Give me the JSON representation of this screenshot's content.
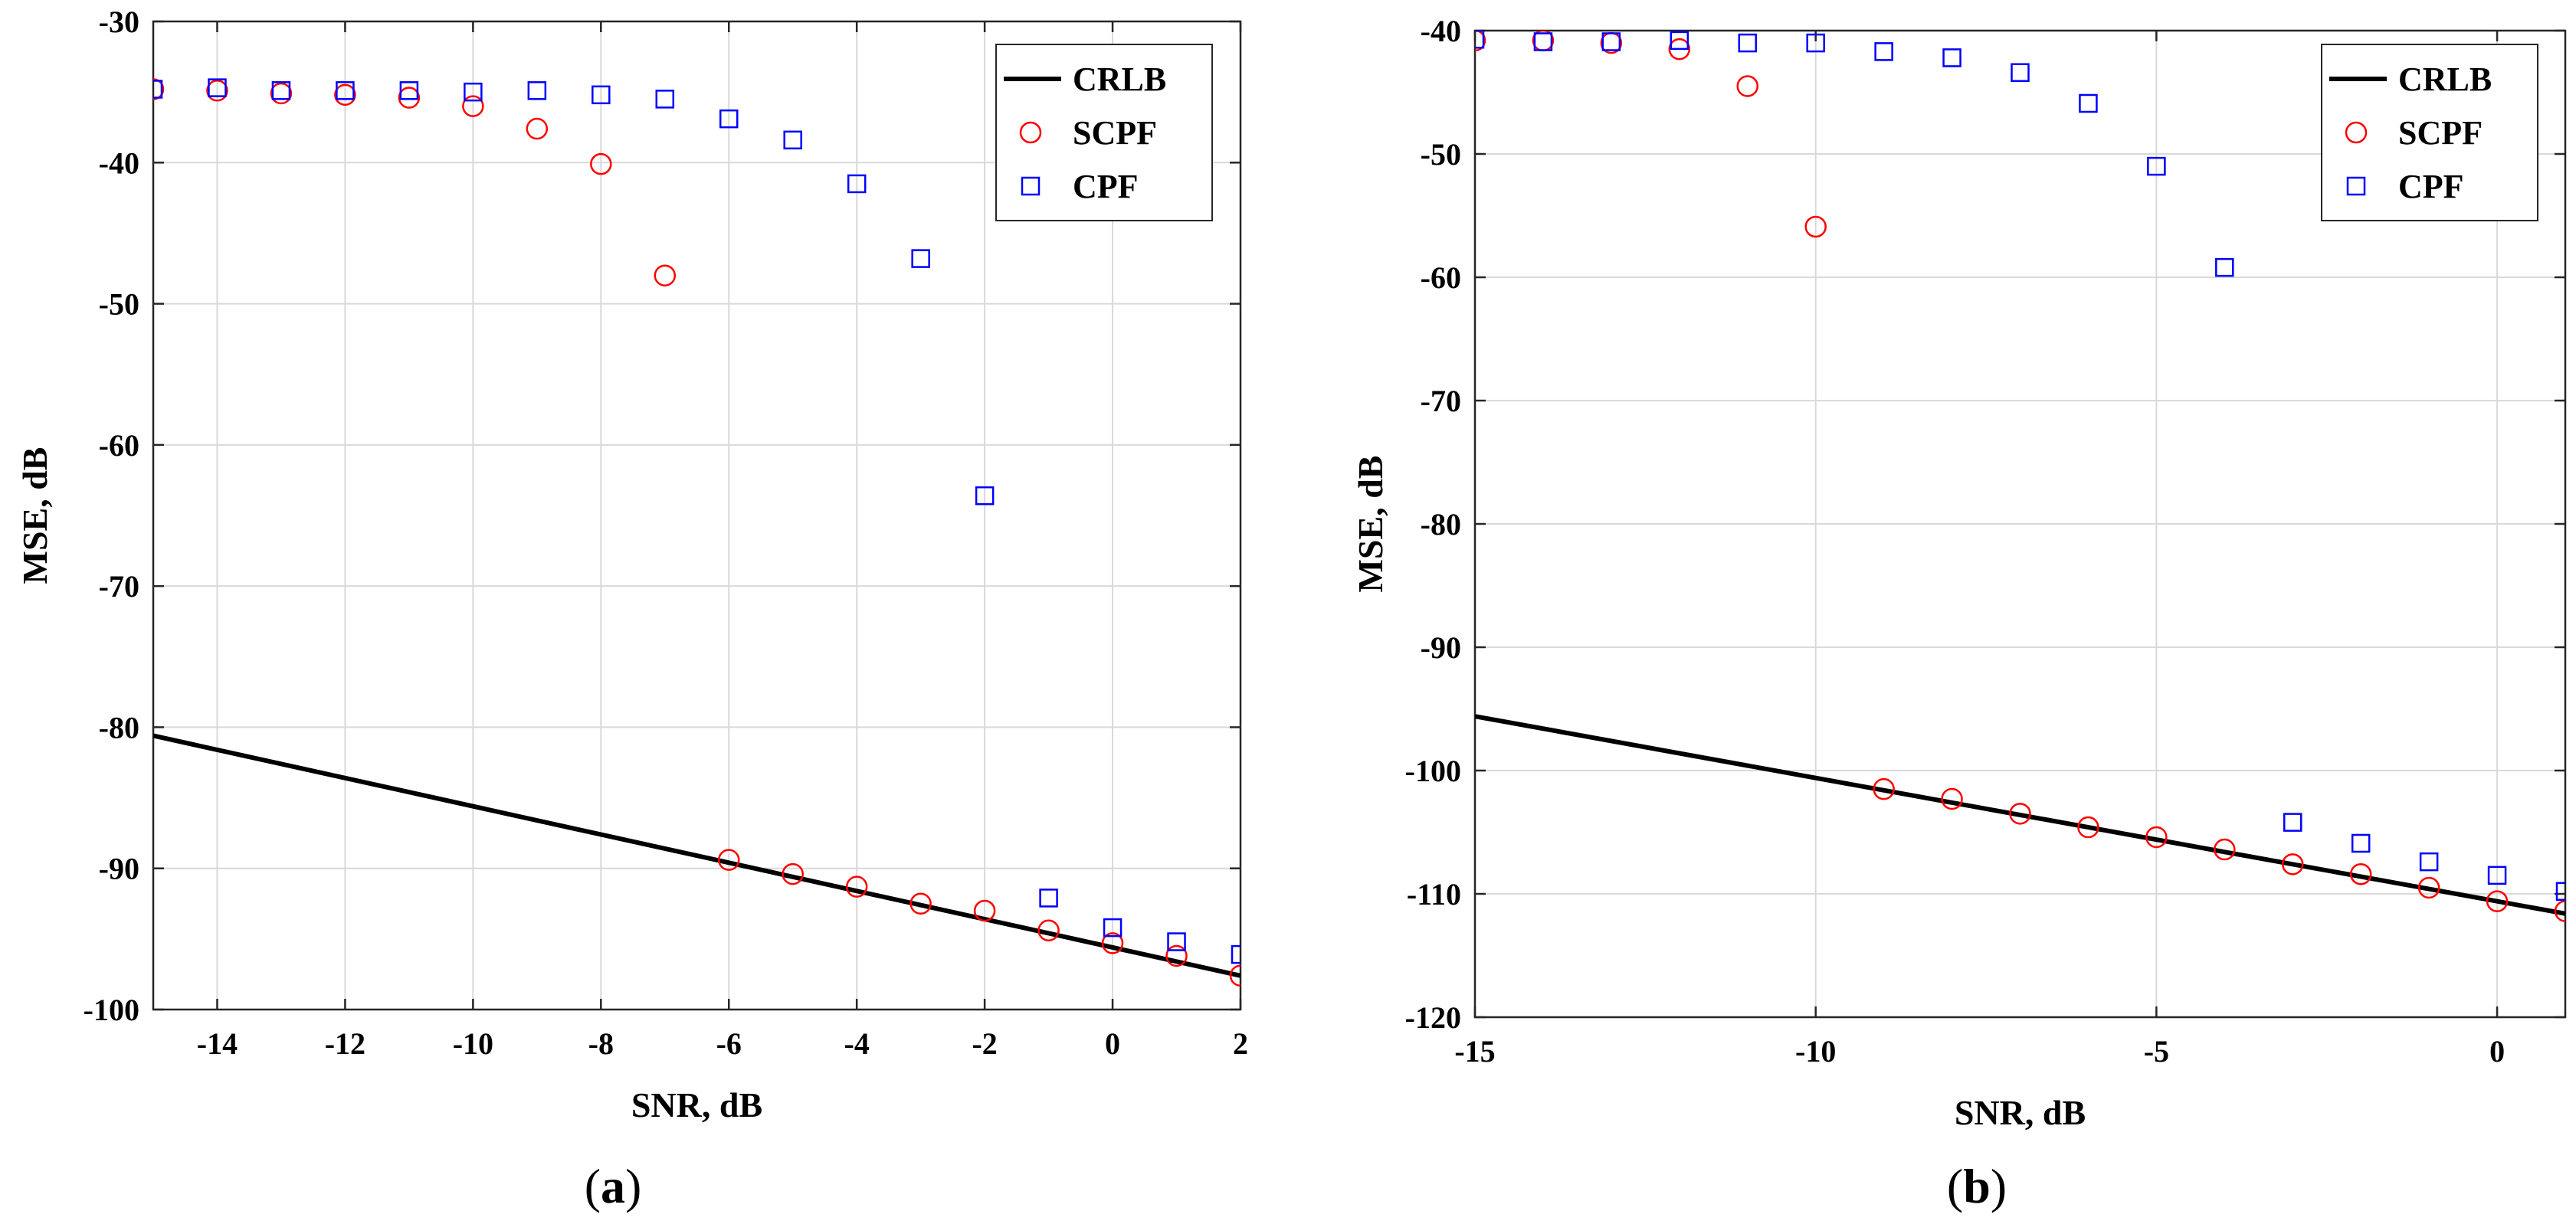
{
  "chart_data": [
    {
      "type": "line+scatter",
      "caption_prefix": "(",
      "caption_letter": "a",
      "caption_suffix": ")",
      "xlabel": "SNR, dB",
      "ylabel": "MSE, dB",
      "xlim": [
        -15,
        2
      ],
      "ylim": [
        -100,
        -30
      ],
      "xticks": [
        -14,
        -12,
        -10,
        -8,
        -6,
        -4,
        -2,
        0,
        2
      ],
      "yticks": [
        -100,
        -90,
        -80,
        -70,
        -60,
        -50,
        -40,
        -30
      ],
      "legend_position": "top-right",
      "series": [
        {
          "name": "CRLB",
          "style": "line",
          "color": "#000000",
          "x": [
            -15,
            2
          ],
          "y": [
            -80.6,
            -97.6
          ]
        },
        {
          "name": "SCPF",
          "style": "circle",
          "color": "#ff0000",
          "x": [
            -15,
            -14,
            -13,
            -12,
            -11,
            -10,
            -9,
            -8,
            -7,
            -6,
            -5,
            -4,
            -3,
            -2,
            -1,
            0,
            1,
            2
          ],
          "y": [
            -34.8,
            -34.9,
            -35.1,
            -35.2,
            -35.4,
            -36.0,
            -37.6,
            -40.1,
            -48.0,
            -89.4,
            -90.4,
            -91.3,
            -92.5,
            -93.0,
            -94.4,
            -95.3,
            -96.2,
            -97.6
          ]
        },
        {
          "name": "CPF",
          "style": "square",
          "color": "#0000ff",
          "x": [
            -15,
            -14,
            -13,
            -12,
            -11,
            -10,
            -9,
            -8,
            -7,
            -6,
            -5,
            -4,
            -3,
            -2,
            -1,
            0,
            1,
            2
          ],
          "y": [
            -34.8,
            -34.7,
            -34.9,
            -34.9,
            -34.9,
            -35.0,
            -34.9,
            -35.2,
            -35.5,
            -36.9,
            -38.4,
            -41.5,
            -46.8,
            -63.6,
            -92.1,
            -94.2,
            -95.2,
            -96.1
          ]
        }
      ]
    },
    {
      "type": "line+scatter",
      "caption_prefix": "(",
      "caption_letter": "b",
      "caption_suffix": ")",
      "xlabel": "SNR, dB",
      "ylabel": "MSE, dB",
      "xlim": [
        -15,
        1
      ],
      "ylim": [
        -120,
        -40
      ],
      "xticks": [
        -15,
        -10,
        -5,
        0
      ],
      "yticks": [
        -120,
        -110,
        -100,
        -90,
        -80,
        -70,
        -60,
        -50,
        -40
      ],
      "legend_position": "top-right",
      "series": [
        {
          "name": "CRLB",
          "style": "line",
          "color": "#000000",
          "x": [
            -15,
            1
          ],
          "y": [
            -95.6,
            -111.6
          ]
        },
        {
          "name": "SCPF",
          "style": "circle",
          "color": "#ff0000",
          "x": [
            -15,
            -14,
            -13,
            -12,
            -11,
            -10,
            -9,
            -8,
            -7,
            -6,
            -5,
            -4,
            -3,
            -2,
            -1,
            0,
            1
          ],
          "y": [
            -40.8,
            -40.8,
            -41.0,
            -41.5,
            -44.5,
            -55.9,
            -101.5,
            -102.3,
            -103.5,
            -104.6,
            -105.4,
            -106.4,
            -107.6,
            -108.4,
            -109.5,
            -110.6,
            -111.4
          ]
        },
        {
          "name": "CPF",
          "style": "square",
          "color": "#0000ff",
          "x": [
            -15,
            -14,
            -13,
            -12,
            -11,
            -10,
            -9,
            -8,
            -7,
            -6,
            -5,
            -4,
            -3,
            -2,
            -1,
            0,
            1
          ],
          "y": [
            -40.7,
            -40.9,
            -40.9,
            -40.8,
            -41.0,
            -41.0,
            -41.7,
            -42.2,
            -43.4,
            -45.9,
            -51.0,
            -59.2,
            -104.2,
            -105.9,
            -107.4,
            -108.5,
            -109.8
          ]
        }
      ]
    }
  ]
}
